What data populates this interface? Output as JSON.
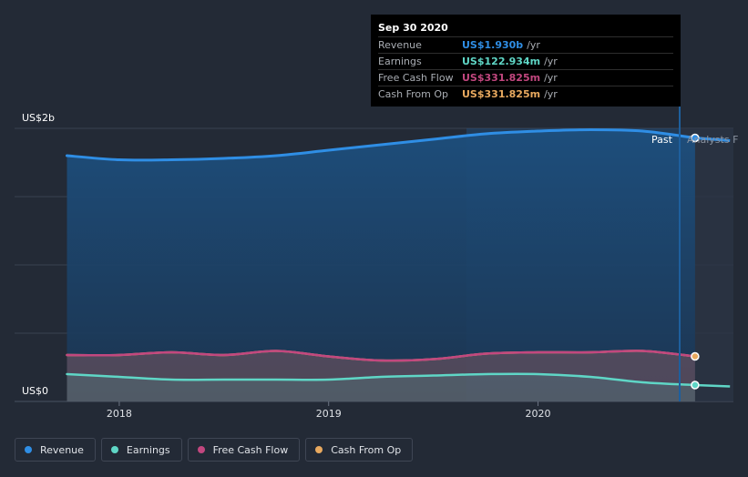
{
  "chart_data": {
    "type": "area",
    "x": [
      "2017-10",
      "2018-01",
      "2018-04",
      "2018-07",
      "2018-10",
      "2019-01",
      "2019-04",
      "2019-07",
      "2019-10",
      "2020-01",
      "2020-04",
      "2020-07",
      "2020-10"
    ],
    "series": [
      {
        "name": "Revenue",
        "color": "#2f8ee5",
        "values": [
          1.8,
          1.77,
          1.77,
          1.78,
          1.8,
          1.84,
          1.88,
          1.92,
          1.96,
          1.98,
          1.99,
          1.98,
          1.93
        ]
      },
      {
        "name": "Earnings",
        "color": "#5fd6c6",
        "values": [
          0.2,
          0.18,
          0.16,
          0.16,
          0.16,
          0.16,
          0.18,
          0.19,
          0.2,
          0.2,
          0.18,
          0.14,
          0.12
        ]
      },
      {
        "name": "Free Cash Flow",
        "color": "#c2477f",
        "values": [
          0.34,
          0.34,
          0.36,
          0.34,
          0.37,
          0.33,
          0.3,
          0.31,
          0.35,
          0.36,
          0.36,
          0.37,
          0.33
        ]
      },
      {
        "name": "Cash From Op",
        "color": "#e8a95f",
        "values": [
          0.34,
          0.34,
          0.36,
          0.34,
          0.37,
          0.33,
          0.3,
          0.31,
          0.35,
          0.36,
          0.36,
          0.37,
          0.33
        ]
      }
    ],
    "forecast": {
      "x": [
        "2020-10",
        "2020-12"
      ],
      "revenue": [
        1.93,
        1.91
      ],
      "earnings": [
        0.12,
        0.11
      ]
    },
    "y_axis": {
      "top_label": "US$2b",
      "bottom_label": "US$0",
      "ylim": [
        0,
        2.0
      ]
    },
    "x_ticks": [
      "2018",
      "2019",
      "2020"
    ],
    "markers": {
      "past": "Past",
      "analysts": "Analysts F"
    },
    "grid": true
  },
  "tooltip": {
    "date": "Sep 30 2020",
    "rows": [
      {
        "label": "Revenue",
        "value": "US$1.930b",
        "unit": "/yr",
        "color": "#2f8ee5"
      },
      {
        "label": "Earnings",
        "value": "US$122.934m",
        "unit": "/yr",
        "color": "#5fd6c6"
      },
      {
        "label": "Free Cash Flow",
        "value": "US$331.825m",
        "unit": "/yr",
        "color": "#c2477f"
      },
      {
        "label": "Cash From Op",
        "value": "US$331.825m",
        "unit": "/yr",
        "color": "#e8a95f"
      }
    ]
  },
  "legend": [
    {
      "label": "Revenue",
      "color": "#2f8ee5"
    },
    {
      "label": "Earnings",
      "color": "#5fd6c6"
    },
    {
      "label": "Free Cash Flow",
      "color": "#c2477f"
    },
    {
      "label": "Cash From Op",
      "color": "#e8a95f"
    }
  ]
}
